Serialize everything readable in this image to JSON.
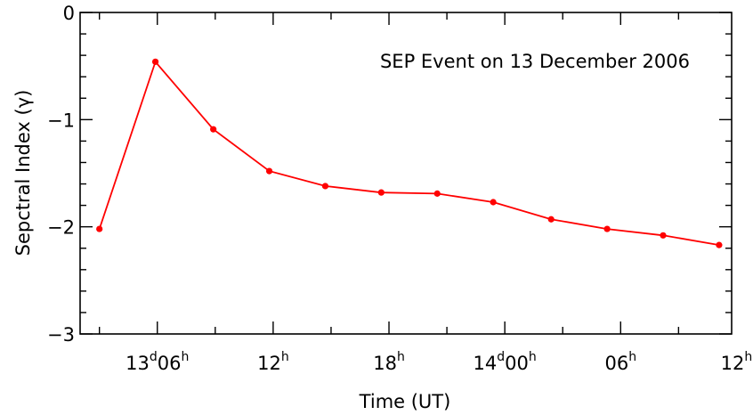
{
  "chart_data": {
    "type": "line",
    "title": "SEP Event on 13 December 2006",
    "xlabel": "Time (UT)",
    "ylabel": "Sepctral Index (γ)",
    "ylim": [
      -3,
      0
    ],
    "xlim_hours": [
      2.0,
      35.75
    ],
    "yticks": [
      {
        "value": 0,
        "label": "0"
      },
      {
        "value": -1,
        "label": "−1"
      },
      {
        "value": -2,
        "label": "−2"
      },
      {
        "value": -3,
        "label": "−3"
      }
    ],
    "xticks": [
      {
        "hour": 6,
        "main": "13",
        "sup1": "d",
        "mid": "06",
        "sup2": "h"
      },
      {
        "hour": 12,
        "main": "12",
        "sup1": "h",
        "mid": "",
        "sup2": ""
      },
      {
        "hour": 18,
        "main": "18",
        "sup1": "h",
        "mid": "",
        "sup2": ""
      },
      {
        "hour": 24,
        "main": "14",
        "sup1": "d",
        "mid": "00",
        "sup2": "h"
      },
      {
        "hour": 30,
        "main": "06",
        "sup1": "h",
        "mid": "",
        "sup2": ""
      },
      {
        "hour": 36,
        "main": "12",
        "sup1": "h",
        "mid": "",
        "sup2": ""
      }
    ],
    "series": [
      {
        "color": "#ff0000",
        "x": [
          3.0,
          5.9,
          8.9,
          11.8,
          14.7,
          17.6,
          20.5,
          23.4,
          26.4,
          29.3,
          32.2,
          35.1
        ],
        "y": [
          -2.02,
          -0.46,
          -1.09,
          -1.48,
          -1.62,
          -1.68,
          -1.69,
          -1.77,
          -1.93,
          -2.02,
          -2.08,
          -2.17
        ]
      }
    ],
    "grid": false,
    "legend": "none"
  }
}
